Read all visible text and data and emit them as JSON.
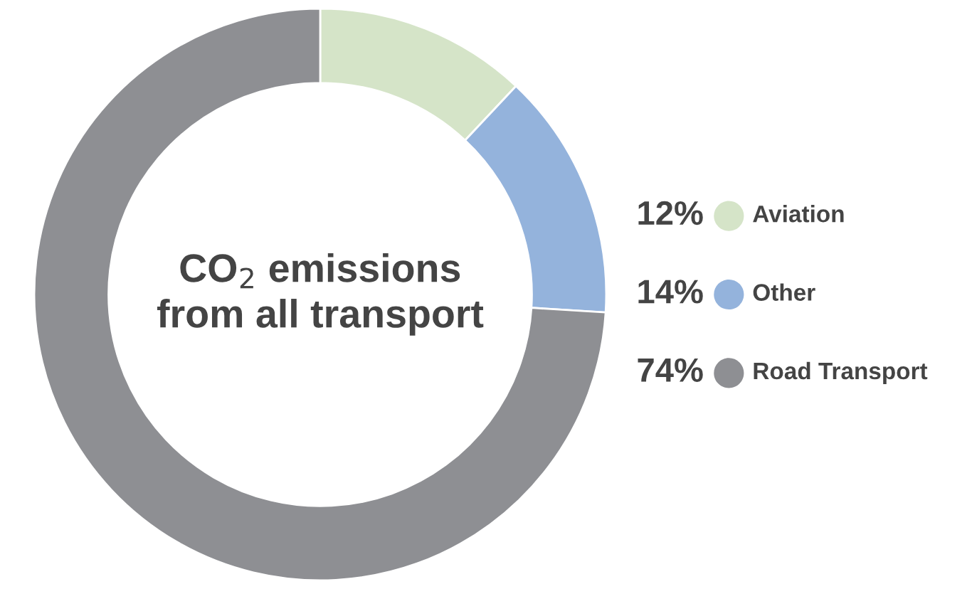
{
  "chart_data": {
    "type": "donut",
    "title": "CO$_{2}$ emissions\nfrom all transport",
    "categories": [
      "Aviation",
      "Other",
      "Road Transport"
    ],
    "values": [
      12,
      14,
      74
    ],
    "colors": [
      "#d5e4c8",
      "#94b3dc",
      "#8e8f93"
    ],
    "value_labels": [
      "12%",
      "14%",
      "74%"
    ],
    "legend": "right"
  }
}
